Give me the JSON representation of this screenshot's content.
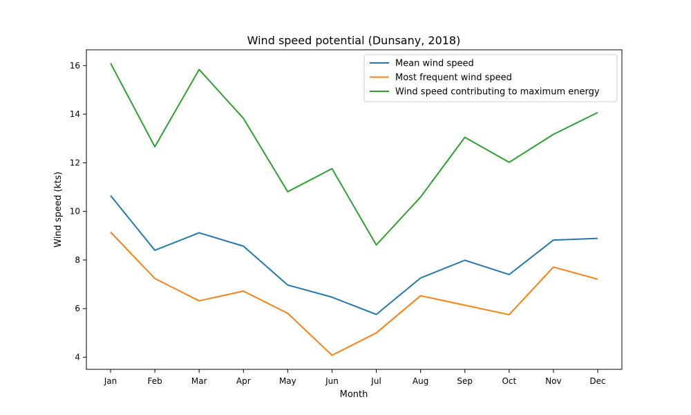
{
  "chart_data": {
    "type": "line",
    "title": "Wind speed potential (Dunsany, 2018)",
    "xlabel": "Month",
    "ylabel": "Wind speed (kts)",
    "categories": [
      "Jan",
      "Feb",
      "Mar",
      "Apr",
      "May",
      "Jun",
      "Jul",
      "Aug",
      "Sep",
      "Oct",
      "Nov",
      "Dec"
    ],
    "ylim": [
      3.5,
      16.65
    ],
    "yticks": [
      4,
      6,
      8,
      10,
      12,
      14,
      16
    ],
    "grid": false,
    "legend_position": "top-right",
    "series": [
      {
        "name": "Mean wind speed",
        "color": "#1f77b4",
        "values": [
          10.65,
          8.4,
          9.12,
          8.57,
          6.97,
          6.47,
          5.76,
          7.26,
          7.99,
          7.4,
          8.82,
          8.89
        ]
      },
      {
        "name": "Most frequent wind speed",
        "color": "#ff7f0e",
        "values": [
          9.15,
          7.24,
          6.32,
          6.72,
          5.81,
          4.08,
          5.0,
          6.53,
          6.14,
          5.75,
          7.71,
          7.21
        ]
      },
      {
        "name": "Wind speed contributing to maximum energy",
        "color": "#2ca02c",
        "values": [
          16.1,
          12.66,
          15.84,
          13.83,
          10.81,
          11.76,
          8.62,
          10.59,
          13.05,
          12.02,
          13.17,
          14.07
        ]
      }
    ]
  }
}
